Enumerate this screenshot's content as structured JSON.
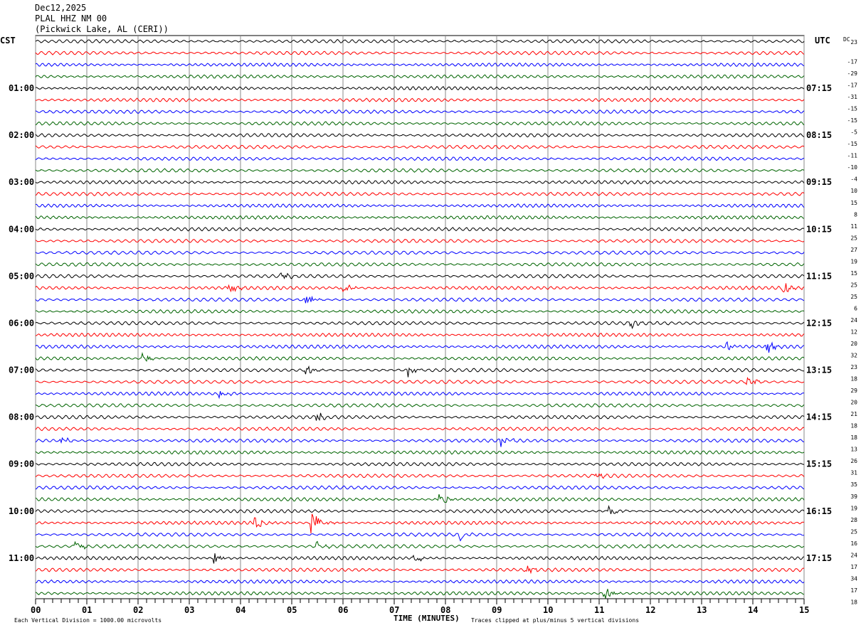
{
  "header": {
    "date": "Dec12,2025",
    "station": "PLAL HHZ NM 00",
    "location": "(Pickwick Lake, AL (CERI))"
  },
  "chart_data": {
    "type": "line",
    "title": "PLAL HHZ NM 00 helicorder",
    "left_axis_label": "CST",
    "right_axis_label": "UTC",
    "dc_label": "DC",
    "xlabel": "TIME (MINUTES)",
    "x_ticks": [
      "00",
      "01",
      "02",
      "03",
      "04",
      "05",
      "06",
      "07",
      "08",
      "09",
      "10",
      "11",
      "12",
      "13",
      "14",
      "15"
    ],
    "xlim": [
      0,
      15
    ],
    "cst_hour_labels": [
      "01:00",
      "02:00",
      "03:00",
      "04:00",
      "05:00",
      "06:00",
      "07:00",
      "08:00",
      "09:00",
      "10:00",
      "11:00"
    ],
    "utc_hour_labels": [
      "07:15",
      "08:15",
      "09:15",
      "10:15",
      "11:15",
      "12:15",
      "13:15",
      "14:15",
      "15:15",
      "16:15",
      "17:15"
    ],
    "trace_colors": [
      "#000000",
      "#ff0000",
      "#0000ff",
      "#006400"
    ],
    "traces_per_hour": 4,
    "trace_count": 48,
    "dc_offsets": [
      "23",
      "-17",
      "-29",
      "-17",
      "-31",
      "-15",
      "-15",
      "-5",
      "-15",
      "-11",
      "-10",
      "-4",
      "10",
      "15",
      "8",
      "11",
      "25",
      "27",
      "19",
      "15",
      "25",
      "25",
      "6",
      "24",
      "12",
      "20",
      "32",
      "23",
      "18",
      "29",
      "20",
      "21",
      "18",
      "18",
      "13",
      "26",
      "31",
      "35",
      "39",
      "19",
      "28",
      "25",
      "16",
      "24",
      "17",
      "34",
      "17",
      "18"
    ],
    "events": [
      {
        "trace": 20,
        "minute": 4.8,
        "amp": 0.5
      },
      {
        "trace": 21,
        "minute": 3.8,
        "amp": 0.6
      },
      {
        "trace": 21,
        "minute": 6.0,
        "amp": 0.6
      },
      {
        "trace": 21,
        "minute": 14.6,
        "amp": 0.6
      },
      {
        "trace": 22,
        "minute": 5.3,
        "amp": 0.6
      },
      {
        "trace": 24,
        "minute": 11.6,
        "amp": 0.7
      },
      {
        "trace": 26,
        "minute": 13.5,
        "amp": 0.5
      },
      {
        "trace": 26,
        "minute": 14.3,
        "amp": 0.6
      },
      {
        "trace": 27,
        "minute": 2.1,
        "amp": 0.6
      },
      {
        "trace": 28,
        "minute": 7.3,
        "amp": 0.8
      },
      {
        "trace": 28,
        "minute": 5.3,
        "amp": 0.5
      },
      {
        "trace": 29,
        "minute": 13.9,
        "amp": 0.7
      },
      {
        "trace": 30,
        "minute": 3.6,
        "amp": 0.5
      },
      {
        "trace": 32,
        "minute": 5.5,
        "amp": 0.6
      },
      {
        "trace": 34,
        "minute": 9.1,
        "amp": 0.7
      },
      {
        "trace": 34,
        "minute": 0.5,
        "amp": 0.5
      },
      {
        "trace": 37,
        "minute": 10.9,
        "amp": 0.5
      },
      {
        "trace": 39,
        "minute": 7.9,
        "amp": 0.8
      },
      {
        "trace": 40,
        "minute": 11.2,
        "amp": 0.7
      },
      {
        "trace": 41,
        "minute": 5.4,
        "amp": 1.6
      },
      {
        "trace": 41,
        "minute": 4.3,
        "amp": 0.9
      },
      {
        "trace": 42,
        "minute": 8.3,
        "amp": 0.6
      },
      {
        "trace": 43,
        "minute": 0.8,
        "amp": 0.6
      },
      {
        "trace": 43,
        "minute": 5.5,
        "amp": 0.6
      },
      {
        "trace": 44,
        "minute": 3.5,
        "amp": 0.6
      },
      {
        "trace": 44,
        "minute": 7.4,
        "amp": 0.6
      },
      {
        "trace": 45,
        "minute": 9.6,
        "amp": 0.5
      },
      {
        "trace": 47,
        "minute": 11.1,
        "amp": 0.8
      }
    ]
  },
  "footer": {
    "scale_note": "Each Vertical Division = 1000.00 microvolts",
    "clip_note": "Traces clipped at plus/minus 5 vertical divisions"
  }
}
